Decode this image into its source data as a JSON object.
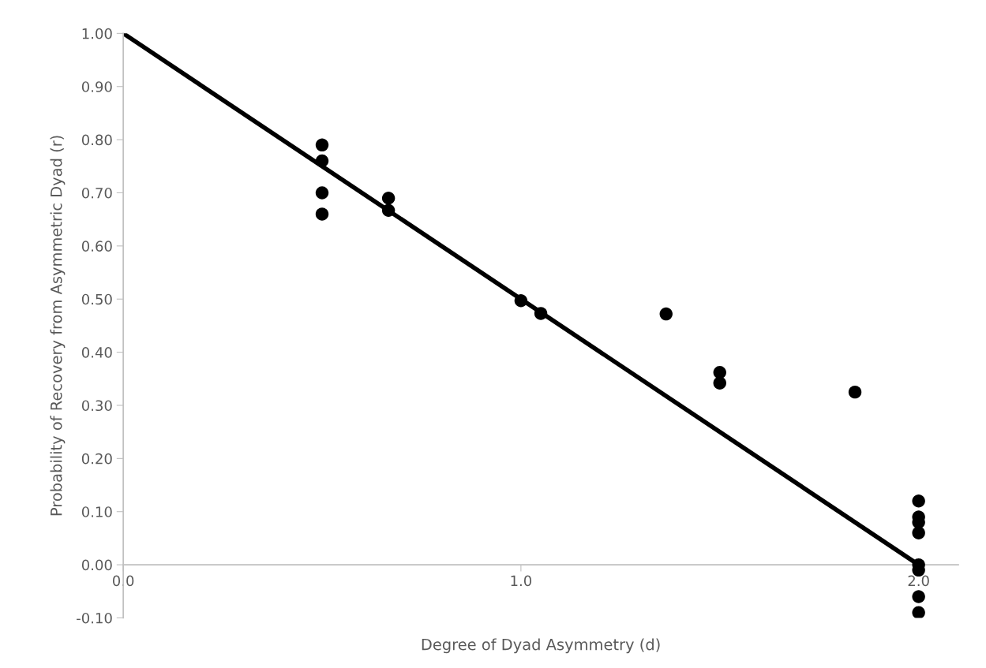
{
  "chart_data": {
    "type": "scatter",
    "xlabel": "Degree of Dyad Asymmetry (d)",
    "ylabel": "Probability of Recovery from Asymmetric Dyad (r)",
    "series": [
      {
        "color": "#000000",
        "x": [
          0.5,
          0.5,
          0.5,
          0.5,
          0.667,
          0.667,
          1.0,
          1.05,
          1.365,
          1.5,
          1.5,
          1.84,
          2.0,
          2.0,
          2.0,
          2.0,
          2.0,
          2.0,
          2.0,
          2.0
        ],
        "values": [
          0.79,
          0.76,
          0.7,
          0.66,
          0.69,
          0.667,
          0.497,
          0.473,
          0.472,
          0.362,
          0.342,
          0.325,
          0.12,
          0.09,
          0.08,
          0.06,
          0.0,
          -0.01,
          -0.06,
          -0.09
        ]
      },
      {
        "type": "line",
        "color": "#000000",
        "x": [
          0.0,
          2.0
        ],
        "values": [
          1.0,
          0.0
        ]
      }
    ],
    "xlim": [
      0.0,
      2.1
    ],
    "xticks": [
      {
        "value": 0,
        "label": "0.0"
      },
      {
        "value": 1,
        "label": "1.0"
      },
      {
        "value": 2,
        "label": "2.0"
      }
    ],
    "ylim": [
      -0.1,
      1.0
    ],
    "yticks": [
      {
        "value": -0.1,
        "label": "-0.10"
      },
      {
        "value": 0,
        "label": "0.00"
      },
      {
        "value": 0.1,
        "label": "0.10"
      },
      {
        "value": 0.2,
        "label": "0.20"
      },
      {
        "value": 0.3,
        "label": "0.30"
      },
      {
        "value": 0.4,
        "label": "0.40"
      },
      {
        "value": 0.5,
        "label": "0.50"
      },
      {
        "value": 0.6,
        "label": "0.60"
      },
      {
        "value": 0.7,
        "label": "0.70"
      },
      {
        "value": 0.8,
        "label": "0.80"
      },
      {
        "value": 0.9,
        "label": "0.90"
      },
      {
        "value": 1.0,
        "label": "1.00"
      }
    ],
    "grid": false
  }
}
